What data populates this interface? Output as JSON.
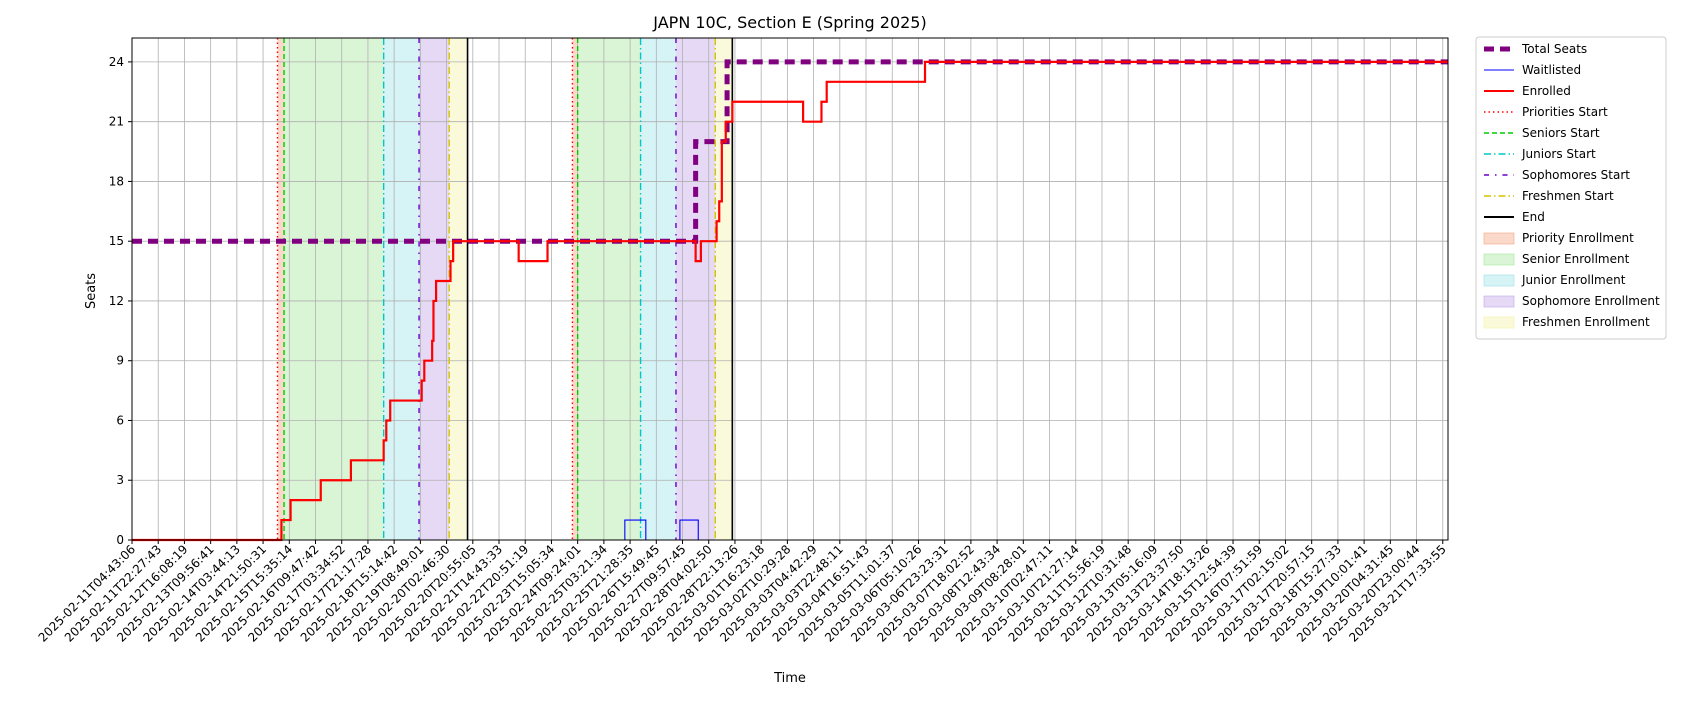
{
  "chart_data": {
    "type": "line",
    "title": "JAPN 10C, Section E (Spring 2025)",
    "xlabel": "Time",
    "ylabel": "Seats",
    "ylim": [
      0,
      25.2
    ],
    "yticks": [
      0,
      3,
      6,
      9,
      12,
      15,
      18,
      21,
      24
    ],
    "grid": true,
    "legend_position": "outside-top-right",
    "x_tick_labels": [
      "2025-02-11T04:43:06",
      "2025-02-11T22:27:43",
      "2025-02-12T16:08:19",
      "2025-02-13T09:56:41",
      "2025-02-14T03:44:13",
      "2025-02-14T21:50:31",
      "2025-02-15T15:35:14",
      "2025-02-16T09:47:42",
      "2025-02-17T03:34:52",
      "2025-02-17T21:17:28",
      "2025-02-18T15:14:42",
      "2025-02-19T08:49:01",
      "2025-02-20T02:46:30",
      "2025-02-20T20:55:05",
      "2025-02-21T14:43:33",
      "2025-02-22T20:51:19",
      "2025-02-23T15:05:34",
      "2025-02-24T09:24:01",
      "2025-02-25T03:21:34",
      "2025-02-25T21:28:35",
      "2025-02-26T15:49:45",
      "2025-02-27T09:57:45",
      "2025-02-28T04:02:50",
      "2025-02-28T22:13:26",
      "2025-03-01T16:23:18",
      "2025-03-02T10:29:28",
      "2025-03-03T04:42:29",
      "2025-03-03T22:48:11",
      "2025-03-04T16:51:43",
      "2025-03-05T11:01:37",
      "2025-03-06T05:10:26",
      "2025-03-06T23:23:31",
      "2025-03-07T18:02:52",
      "2025-03-08T12:43:34",
      "2025-03-09T08:28:01",
      "2025-03-10T02:47:11",
      "2025-03-10T21:27:14",
      "2025-03-11T15:56:19",
      "2025-03-12T10:31:48",
      "2025-03-13T05:16:09",
      "2025-03-13T23:37:50",
      "2025-03-14T18:13:26",
      "2025-03-15T12:54:39",
      "2025-03-16T07:51:59",
      "2025-03-17T02:15:02",
      "2025-03-17T20:57:15",
      "2025-03-18T15:27:33",
      "2025-03-19T10:01:41",
      "2025-03-20T04:31:45",
      "2025-03-20T23:00:44",
      "2025-03-21T17:33:55"
    ],
    "x_range_index": [
      0,
      50.2
    ],
    "series": [
      {
        "name": "Total Seats",
        "color": "#800080",
        "style": "dashed-thick",
        "points": [
          [
            0,
            15
          ],
          [
            21.5,
            15
          ],
          [
            21.5,
            20
          ],
          [
            22.7,
            20
          ],
          [
            22.7,
            24
          ],
          [
            50.2,
            24
          ]
        ]
      },
      {
        "name": "Waitlisted",
        "color": "#0000ff",
        "style": "solid-thin",
        "points": [
          [
            0,
            0
          ],
          [
            18.8,
            0
          ],
          [
            18.8,
            1
          ],
          [
            19.6,
            1
          ],
          [
            19.6,
            0
          ],
          [
            20.9,
            0
          ],
          [
            20.9,
            1
          ],
          [
            21.6,
            1
          ],
          [
            21.6,
            0
          ],
          [
            50.2,
            0
          ]
        ]
      },
      {
        "name": "Enrolled",
        "color": "#ff0000",
        "style": "solid",
        "points": [
          [
            0,
            0
          ],
          [
            5.7,
            0
          ],
          [
            5.7,
            1
          ],
          [
            6.05,
            1
          ],
          [
            6.05,
            2
          ],
          [
            7.2,
            2
          ],
          [
            7.2,
            3
          ],
          [
            8.35,
            3
          ],
          [
            8.35,
            4
          ],
          [
            9.6,
            4
          ],
          [
            9.6,
            5
          ],
          [
            9.7,
            5
          ],
          [
            9.7,
            6
          ],
          [
            9.85,
            6
          ],
          [
            9.85,
            7
          ],
          [
            11.05,
            7
          ],
          [
            11.05,
            8
          ],
          [
            11.15,
            8
          ],
          [
            11.15,
            9
          ],
          [
            11.45,
            9
          ],
          [
            11.45,
            10
          ],
          [
            11.5,
            10
          ],
          [
            11.5,
            12
          ],
          [
            11.6,
            12
          ],
          [
            11.6,
            13
          ],
          [
            12.15,
            13
          ],
          [
            12.15,
            14
          ],
          [
            12.25,
            14
          ],
          [
            12.25,
            15
          ],
          [
            14.75,
            15
          ],
          [
            14.75,
            14
          ],
          [
            15.85,
            14
          ],
          [
            15.85,
            15
          ],
          [
            21.5,
            15
          ],
          [
            21.5,
            14
          ],
          [
            21.7,
            14
          ],
          [
            21.7,
            15
          ],
          [
            22.3,
            15
          ],
          [
            22.3,
            16
          ],
          [
            22.4,
            16
          ],
          [
            22.4,
            17
          ],
          [
            22.5,
            17
          ],
          [
            22.5,
            20
          ],
          [
            22.65,
            20
          ],
          [
            22.65,
            21
          ],
          [
            22.9,
            21
          ],
          [
            22.9,
            22
          ],
          [
            25.6,
            22
          ],
          [
            25.6,
            21
          ],
          [
            26.3,
            21
          ],
          [
            26.3,
            22
          ],
          [
            26.5,
            22
          ],
          [
            26.5,
            23
          ],
          [
            30.25,
            23
          ],
          [
            30.25,
            24
          ],
          [
            50.2,
            24
          ]
        ]
      }
    ],
    "vertical_markers": [
      {
        "name": "Priorities Start",
        "color": "#ff0000",
        "style": "dotted",
        "x": [
          5.55,
          16.8
        ]
      },
      {
        "name": "Seniors Start",
        "color": "#00cc00",
        "style": "dashed",
        "x": [
          5.8,
          17.0
        ]
      },
      {
        "name": "Juniors Start",
        "color": "#00c8c8",
        "style": "dashdot",
        "x": [
          9.6,
          19.4
        ]
      },
      {
        "name": "Sophomores Start",
        "color": "#6600cc",
        "style": "dashdot-sparse",
        "x": [
          10.95,
          20.75
        ]
      },
      {
        "name": "Freshmen Start",
        "color": "#d4c400",
        "style": "dashdot",
        "x": [
          12.1,
          22.25
        ]
      },
      {
        "name": "End",
        "color": "#000000",
        "style": "solid",
        "x": [
          12.8,
          22.9
        ]
      }
    ],
    "shaded_regions": [
      {
        "name": "Priority Enrollment",
        "color": "#f4a582",
        "ranges": [
          [
            5.55,
            5.8
          ],
          [
            16.8,
            17.0
          ]
        ]
      },
      {
        "name": "Senior Enrollment",
        "color": "#a6e89a",
        "ranges": [
          [
            5.8,
            9.6
          ],
          [
            17.0,
            19.4
          ]
        ]
      },
      {
        "name": "Junior Enrollment",
        "color": "#9ee3ea",
        "ranges": [
          [
            9.6,
            10.95
          ],
          [
            19.4,
            20.75
          ]
        ]
      },
      {
        "name": "Sophomore Enrollment",
        "color": "#c2a5e8",
        "ranges": [
          [
            10.95,
            12.1
          ],
          [
            20.75,
            22.25
          ]
        ]
      },
      {
        "name": "Freshmen Enrollment",
        "color": "#f2f2a8",
        "ranges": [
          [
            12.1,
            12.8
          ],
          [
            22.25,
            22.9
          ]
        ]
      }
    ],
    "legend": [
      "Total Seats",
      "Waitlisted",
      "Enrolled",
      "Priorities Start",
      "Seniors Start",
      "Juniors Start",
      "Sophomores Start",
      "Freshmen Start",
      "End",
      "Priority Enrollment",
      "Senior Enrollment",
      "Junior Enrollment",
      "Sophomore Enrollment",
      "Freshmen Enrollment"
    ]
  }
}
